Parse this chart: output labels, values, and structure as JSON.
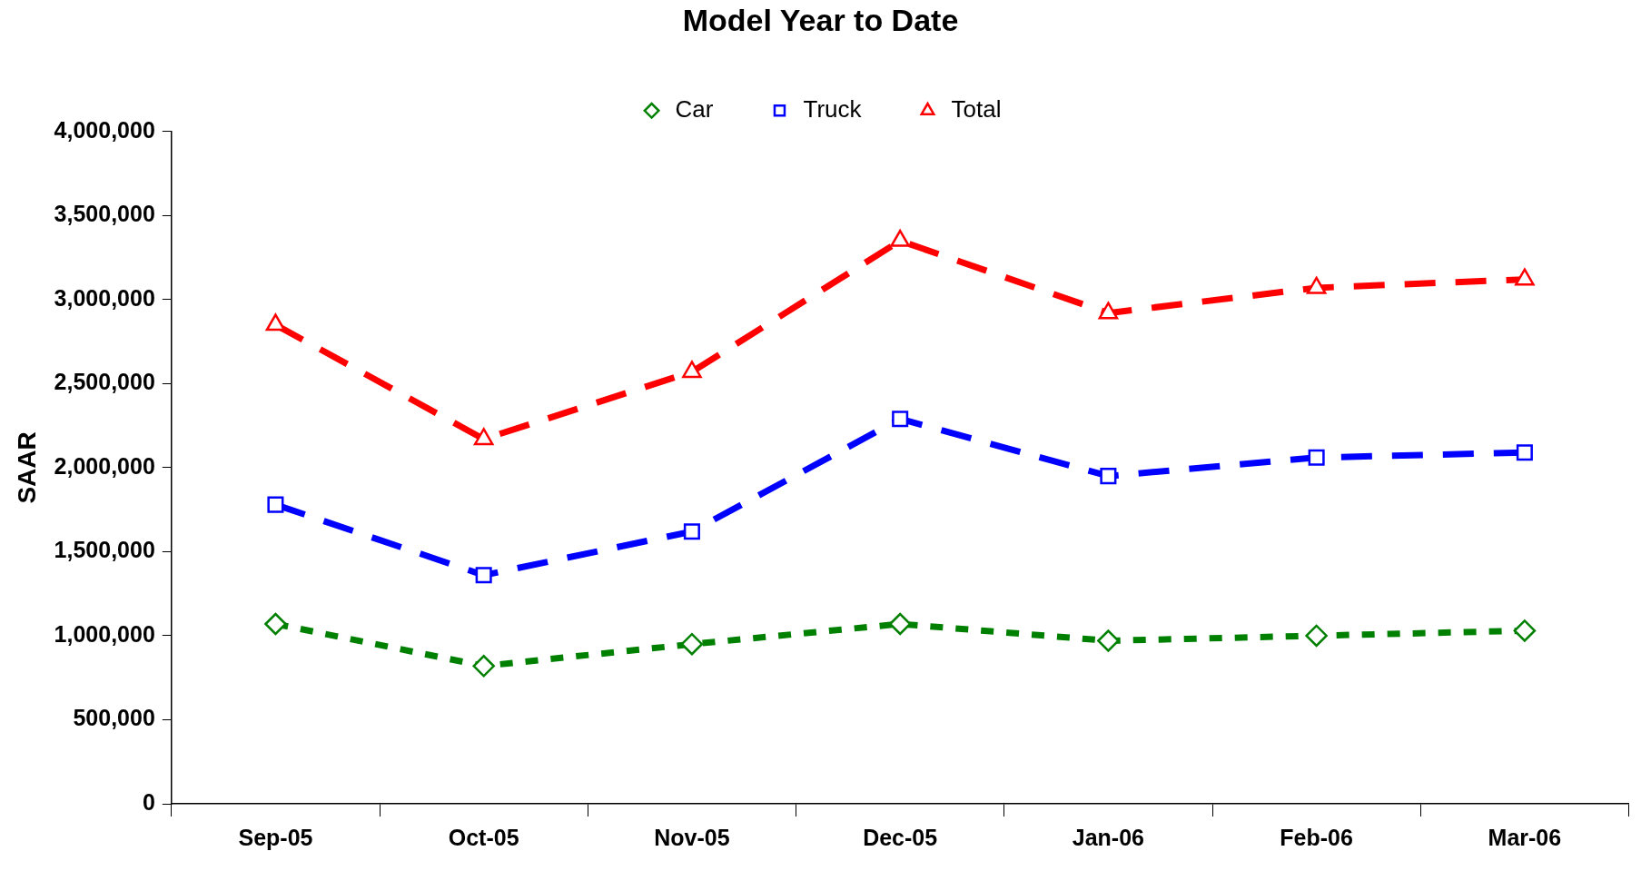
{
  "chart_data": {
    "type": "line",
    "title": "Model Year to Date",
    "ylabel": "SAAR",
    "categories": [
      "Sep-05",
      "Oct-05",
      "Nov-05",
      "Dec-05",
      "Jan-06",
      "Feb-06",
      "Mar-06"
    ],
    "series": [
      {
        "name": "Car",
        "color": "#008000",
        "marker": "diamond",
        "line_style": "dotted",
        "values": [
          1070000,
          820000,
          950000,
          1070000,
          970000,
          1000000,
          1030000
        ]
      },
      {
        "name": "Truck",
        "color": "#0000ff",
        "marker": "square",
        "line_style": "dashed",
        "values": [
          1780000,
          1360000,
          1620000,
          2290000,
          1950000,
          2060000,
          2090000
        ]
      },
      {
        "name": "Total",
        "color": "#ff0000",
        "marker": "triangle",
        "line_style": "dashed",
        "values": [
          2850000,
          2170000,
          2570000,
          3350000,
          2920000,
          3070000,
          3120000
        ]
      }
    ],
    "ylim": [
      0,
      4000000
    ],
    "yticks": [
      {
        "value": 0,
        "label": "0"
      },
      {
        "value": 500000,
        "label": "500,000"
      },
      {
        "value": 1000000,
        "label": "1,000,000"
      },
      {
        "value": 1500000,
        "label": "1,500,000"
      },
      {
        "value": 2000000,
        "label": "2,000,000"
      },
      {
        "value": 2500000,
        "label": "2,500,000"
      },
      {
        "value": 3000000,
        "label": "3,000,000"
      },
      {
        "value": 3500000,
        "label": "3,500,000"
      },
      {
        "value": 4000000,
        "label": "4,000,000"
      }
    ],
    "grid": false,
    "legend": "top"
  }
}
